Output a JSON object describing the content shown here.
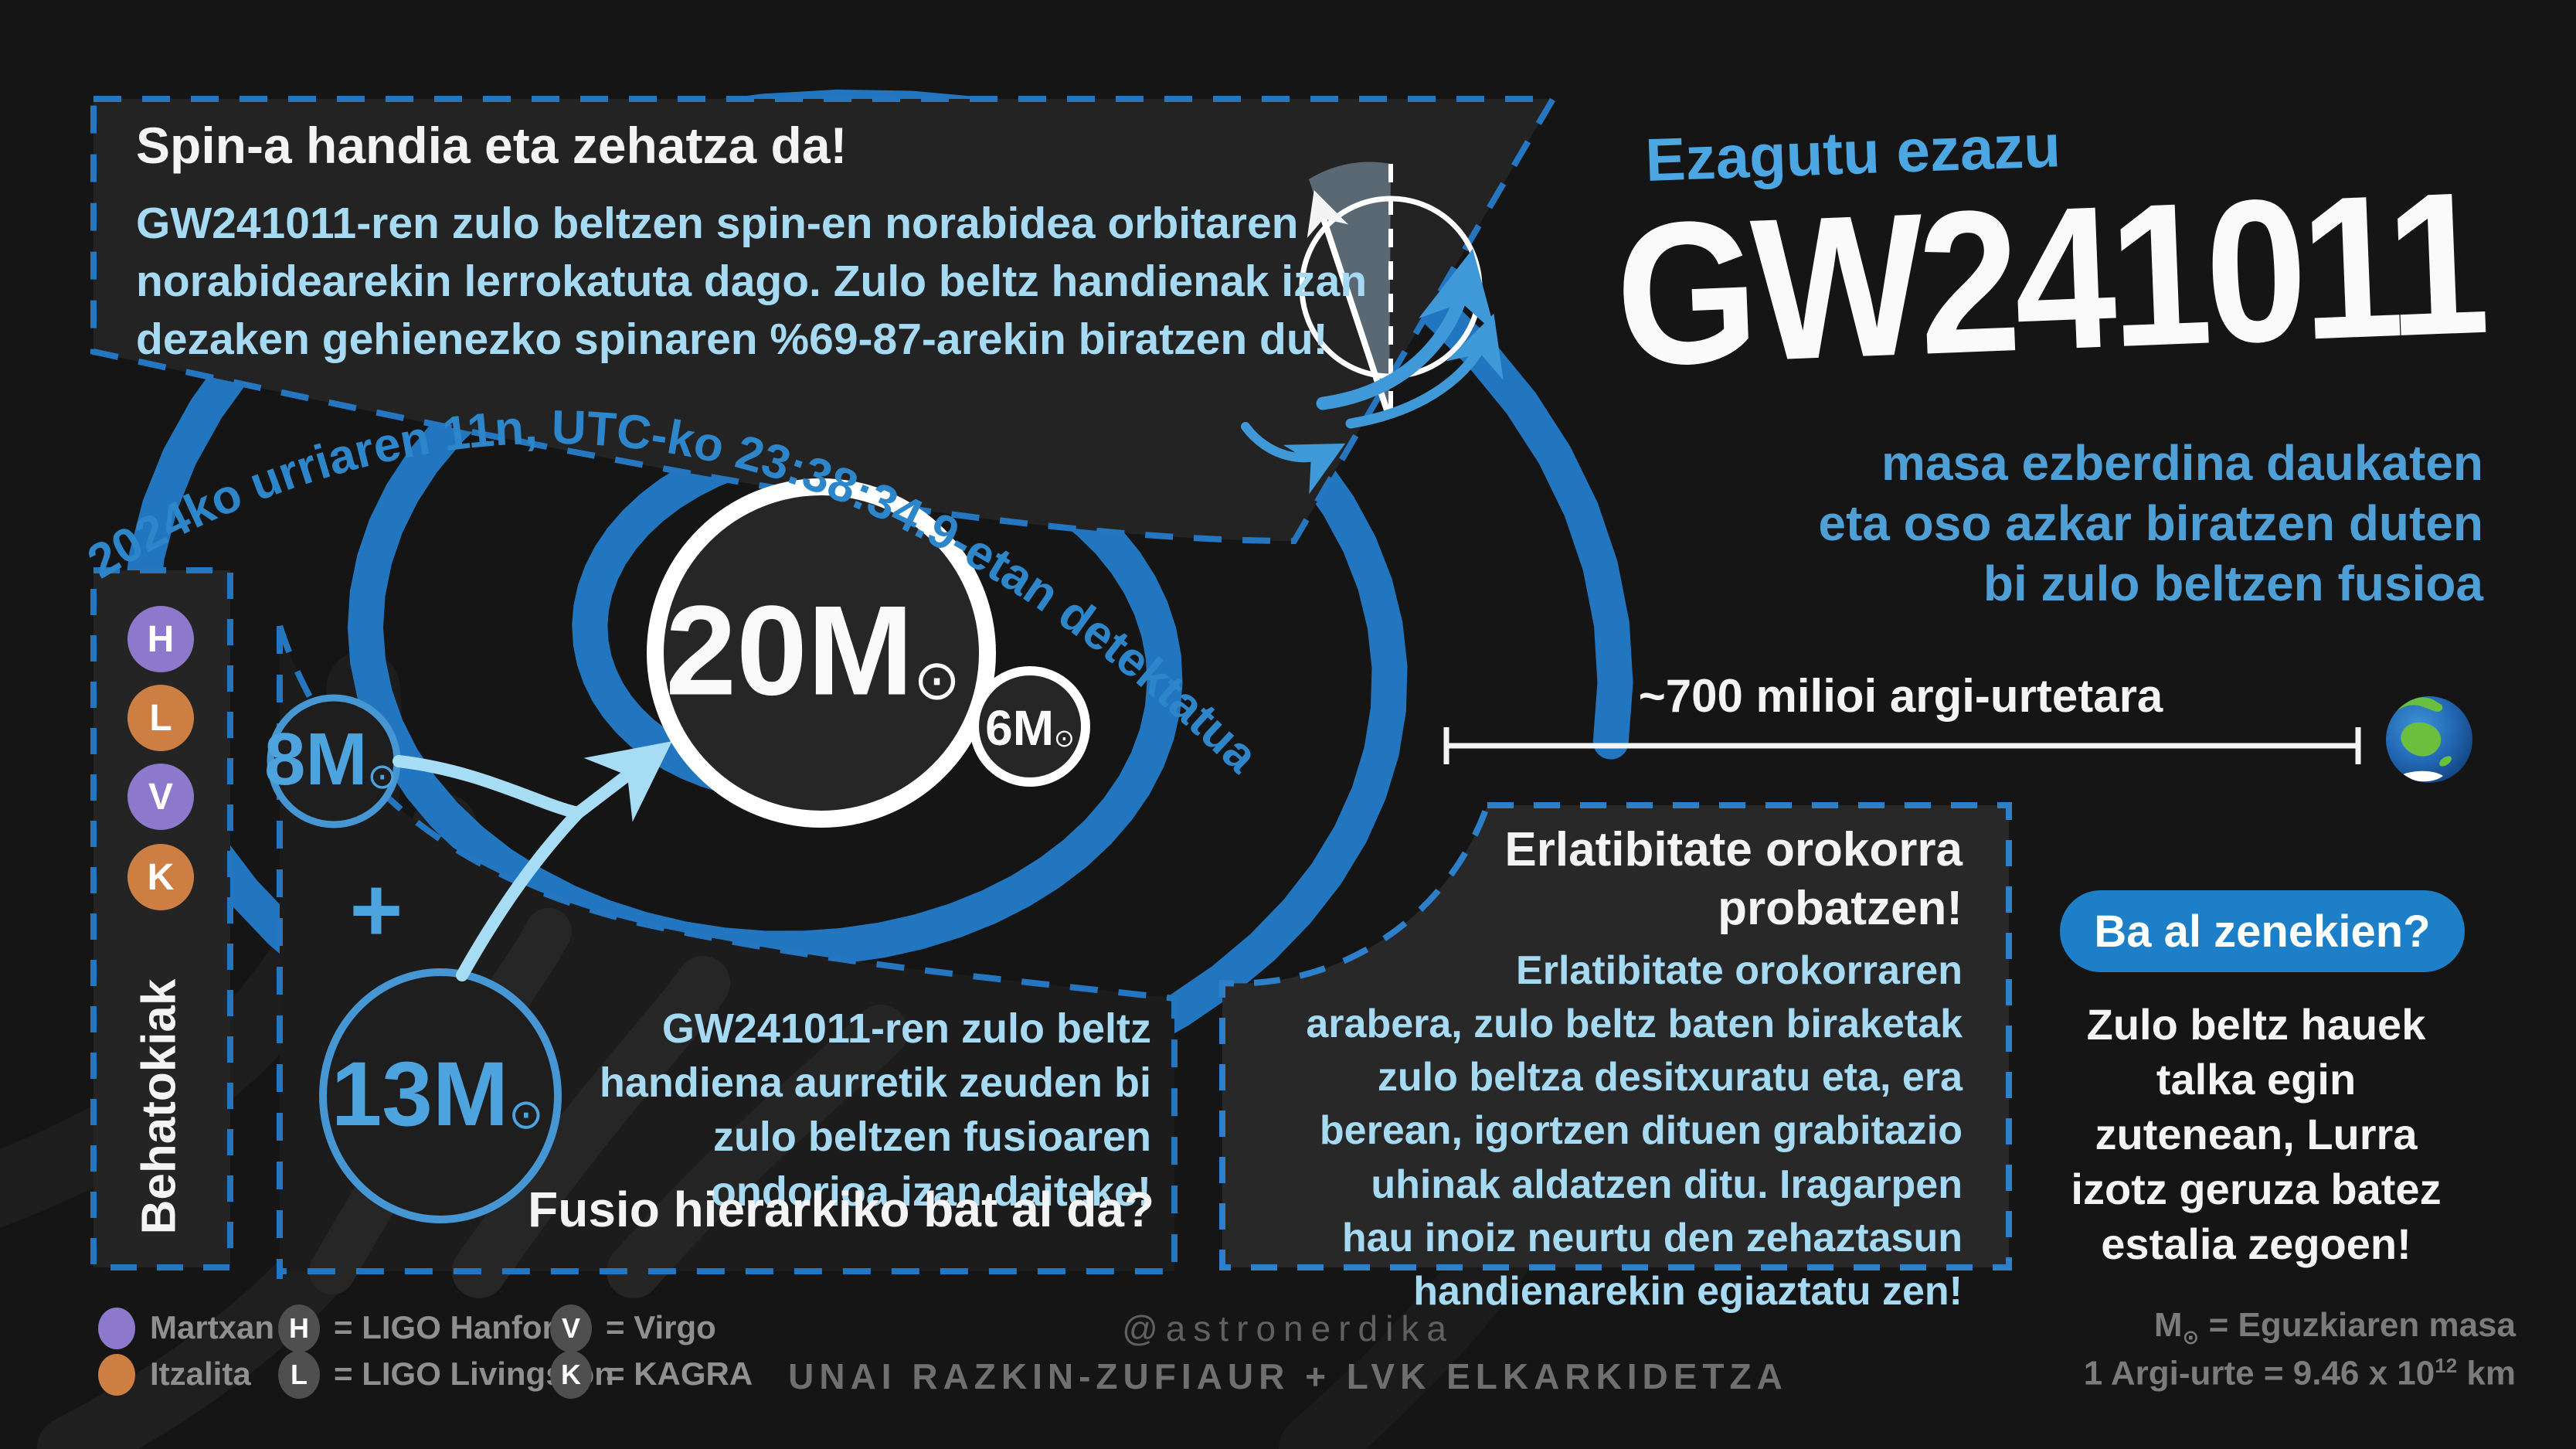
{
  "colors": {
    "background": "#151515",
    "panel": "#232323",
    "accent_blue": "#2176bf",
    "dash_blue": "#2576c1",
    "light_blue_text": "#a6d9f2",
    "mid_blue_text": "#4d9fd6",
    "pill_blue": "#1d7fc7",
    "white": "#f4f4f4",
    "gray_text": "#8f8f8f",
    "purple": "#8d79cc",
    "orange": "#cd7f43"
  },
  "spin_box": {
    "title": "Spin-a handia eta zehatza da!",
    "body": "GW241011-ren zulo beltzen spin-en norabidea orbitaren\nnorabidearekin lerrokatuta dago. Zulo beltz handienak izan\ndezaken gehienezko spinaren %69-87-arekin biratzen du!"
  },
  "detection": {
    "arc_text": "2024ko urriaren 11n, UTC-ko 23:38:34.9-etan detektatua"
  },
  "headline": {
    "kicker": "Ezagutu ezazu",
    "title": "GW241011",
    "subtitle": "masa ezberdina daukaten\neta oso azkar biratzen duten\nbi zulo beltzen fusioa"
  },
  "distance": {
    "label": "~700 milioi argi-urtetara"
  },
  "masses": {
    "primary": {
      "value": "20M",
      "unit": "⊙"
    },
    "secondary": {
      "value": "6M",
      "unit": "⊙"
    },
    "progenitor1": {
      "value": "8M",
      "unit": "⊙"
    },
    "plus": "+",
    "progenitor2": {
      "value": "13M",
      "unit": "⊙"
    }
  },
  "observatories": {
    "label": "Behatokiak",
    "items": [
      {
        "letter": "H",
        "color": "#8d79cc"
      },
      {
        "letter": "L",
        "color": "#cd7f43"
      },
      {
        "letter": "V",
        "color": "#8d79cc"
      },
      {
        "letter": "K",
        "color": "#cd7f43"
      }
    ]
  },
  "relativity_box": {
    "title": "Erlatibitate orokorra\nprobatzen!",
    "body": "Erlatibitate orokorraren\narabera, zulo beltz baten biraketak\nzulo beltza desitxuratu eta, era\nberean, igortzen dituen grabitazio\nuhinak aldatzen ditu. Iragarpen\nhau inoiz neurtu den zehaztasun\nhandienarekin egiaztatu zen!"
  },
  "didyouknow": {
    "button": "Ba al zenekien?",
    "body": "Zulo beltz hauek\ntalka egin\nzutenean, Lurra\nizotz geruza batez\nestalia zegoen!"
  },
  "hierarchical_box": {
    "body": "GW241011-ren zulo beltz\nhandiena aurretik zeuden bi\nzulo beltzen fusioaren\nondorioa izan daiteke!",
    "question": "Fusio hierarkiko bat al da?"
  },
  "legend": {
    "status": [
      {
        "label": "Martxan",
        "color": "#8d79cc"
      },
      {
        "label": "Itzalita",
        "color": "#cd7f43"
      }
    ],
    "detectors": [
      {
        "letter": "H",
        "name": "= LIGO Hanford"
      },
      {
        "letter": "L",
        "name": "= LIGO Livingston"
      },
      {
        "letter": "V",
        "name": "= Virgo"
      },
      {
        "letter": "K",
        "name": "= KAGRA"
      }
    ]
  },
  "credits": {
    "handle": "@astronerdika",
    "authors": "UNAI RAZKIN-ZUFIAUR + LVK ELKARKIDETZA"
  },
  "footnotes": {
    "sun_prefix": "M",
    "sun_symbol": "⊙",
    "sun_suffix": " = Eguzkiaren masa",
    "ly_prefix": "1 Argi-urte = 9.46 x 10",
    "ly_exp": "12",
    "ly_suffix": " km"
  }
}
